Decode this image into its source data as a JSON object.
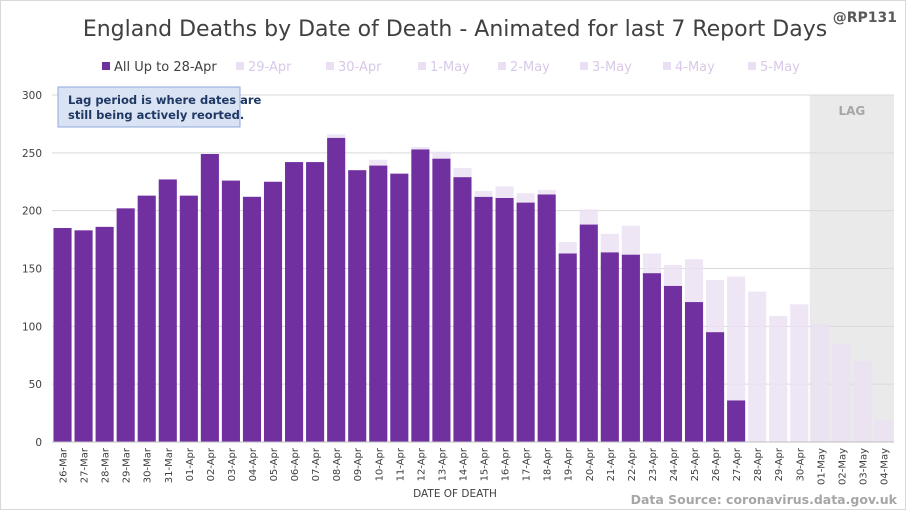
{
  "title": "England Deaths by Date of Death - Animated for last 7 Report Days",
  "handle": "@RP131",
  "source": "Data Source: coronavirus.data.gov.uk",
  "note_lines": [
    "Lag period is where dates are",
    "still being actively reorted."
  ],
  "lag_label": "LAG",
  "colors": {
    "primary": "#7030a0",
    "increment": "#ebe0f3",
    "lag_shade": "#d9d9d9",
    "note_fill": "#dae3f3",
    "note_border": "#8faadc",
    "grid": "#d9d9d9"
  },
  "chart_data": {
    "type": "bar",
    "stacked": true,
    "xlabel": "DATE OF DEATH",
    "ylabel": "",
    "ylim": [
      0,
      300
    ],
    "yticks": [
      0,
      50,
      100,
      150,
      200,
      250,
      300
    ],
    "grid": true,
    "legend_position": "top",
    "categories": [
      "26-Mar",
      "27-Mar",
      "28-Mar",
      "29-Mar",
      "30-Mar",
      "31-Mar",
      "01-Apr",
      "02-Apr",
      "03-Apr",
      "04-Apr",
      "05-Apr",
      "06-Apr",
      "07-Apr",
      "08-Apr",
      "09-Apr",
      "10-Apr",
      "11-Apr",
      "12-Apr",
      "13-Apr",
      "14-Apr",
      "15-Apr",
      "16-Apr",
      "17-Apr",
      "18-Apr",
      "19-Apr",
      "20-Apr",
      "21-Apr",
      "22-Apr",
      "23-Apr",
      "24-Apr",
      "25-Apr",
      "26-Apr",
      "27-Apr",
      "28-Apr",
      "29-Apr",
      "30-Apr",
      "01-May",
      "02-May",
      "03-May",
      "04-May"
    ],
    "lag_categories": [
      "01-May",
      "02-May",
      "03-May",
      "04-May"
    ],
    "series": [
      {
        "name": "All Up to 28-Apr",
        "values": [
          185,
          183,
          186,
          202,
          213,
          227,
          213,
          249,
          226,
          212,
          225,
          242,
          242,
          263,
          235,
          239,
          232,
          253,
          245,
          229,
          212,
          211,
          207,
          214,
          163,
          188,
          164,
          162,
          146,
          135,
          121,
          95,
          36,
          0,
          0,
          0,
          0,
          0,
          0,
          0
        ]
      },
      {
        "name": "29-Apr",
        "values": [
          0,
          0,
          0,
          0,
          0,
          0,
          0,
          0,
          0,
          0,
          0,
          0,
          0,
          3,
          0,
          5,
          0,
          2,
          6,
          8,
          5,
          10,
          8,
          4,
          10,
          13,
          16,
          25,
          17,
          18,
          37,
          45,
          107,
          130,
          109,
          119,
          102,
          85,
          70,
          19
        ]
      },
      {
        "name": "30-Apr",
        "values": [
          0,
          0,
          0,
          0,
          0,
          0,
          0,
          0,
          0,
          0,
          0,
          0,
          0,
          0,
          0,
          0,
          0,
          0,
          0,
          0,
          0,
          0,
          0,
          0,
          0,
          0,
          0,
          0,
          0,
          0,
          0,
          0,
          0,
          0,
          0,
          0,
          0,
          0,
          0,
          0
        ]
      },
      {
        "name": "1-May",
        "values": [
          0,
          0,
          0,
          0,
          0,
          0,
          0,
          0,
          0,
          0,
          0,
          0,
          0,
          0,
          0,
          0,
          0,
          0,
          0,
          0,
          0,
          0,
          0,
          0,
          0,
          0,
          0,
          0,
          0,
          0,
          0,
          0,
          0,
          0,
          0,
          0,
          0,
          0,
          0,
          0
        ]
      },
      {
        "name": "2-May",
        "values": [
          0,
          0,
          0,
          0,
          0,
          0,
          0,
          0,
          0,
          0,
          0,
          0,
          0,
          0,
          0,
          0,
          0,
          0,
          0,
          0,
          0,
          0,
          0,
          0,
          0,
          0,
          0,
          0,
          0,
          0,
          0,
          0,
          0,
          0,
          0,
          0,
          0,
          0,
          0,
          0
        ]
      },
      {
        "name": "3-May",
        "values": [
          0,
          0,
          0,
          0,
          0,
          0,
          0,
          0,
          0,
          0,
          0,
          0,
          0,
          0,
          0,
          0,
          0,
          0,
          0,
          0,
          0,
          0,
          0,
          0,
          0,
          0,
          0,
          0,
          0,
          0,
          0,
          0,
          0,
          0,
          0,
          0,
          0,
          0,
          0,
          0
        ]
      },
      {
        "name": "4-May",
        "values": [
          0,
          0,
          0,
          0,
          0,
          0,
          0,
          0,
          0,
          0,
          0,
          0,
          0,
          0,
          0,
          0,
          0,
          0,
          0,
          0,
          0,
          0,
          0,
          0,
          0,
          0,
          0,
          0,
          0,
          0,
          0,
          0,
          0,
          0,
          0,
          0,
          0,
          0,
          0,
          0
        ]
      },
      {
        "name": "5-May",
        "values": [
          0,
          0,
          0,
          0,
          0,
          0,
          0,
          0,
          0,
          0,
          0,
          0,
          0,
          0,
          0,
          0,
          0,
          0,
          0,
          0,
          0,
          0,
          0,
          0,
          0,
          0,
          0,
          0,
          0,
          0,
          0,
          0,
          0,
          0,
          0,
          0,
          0,
          0,
          0,
          0
        ]
      }
    ]
  }
}
